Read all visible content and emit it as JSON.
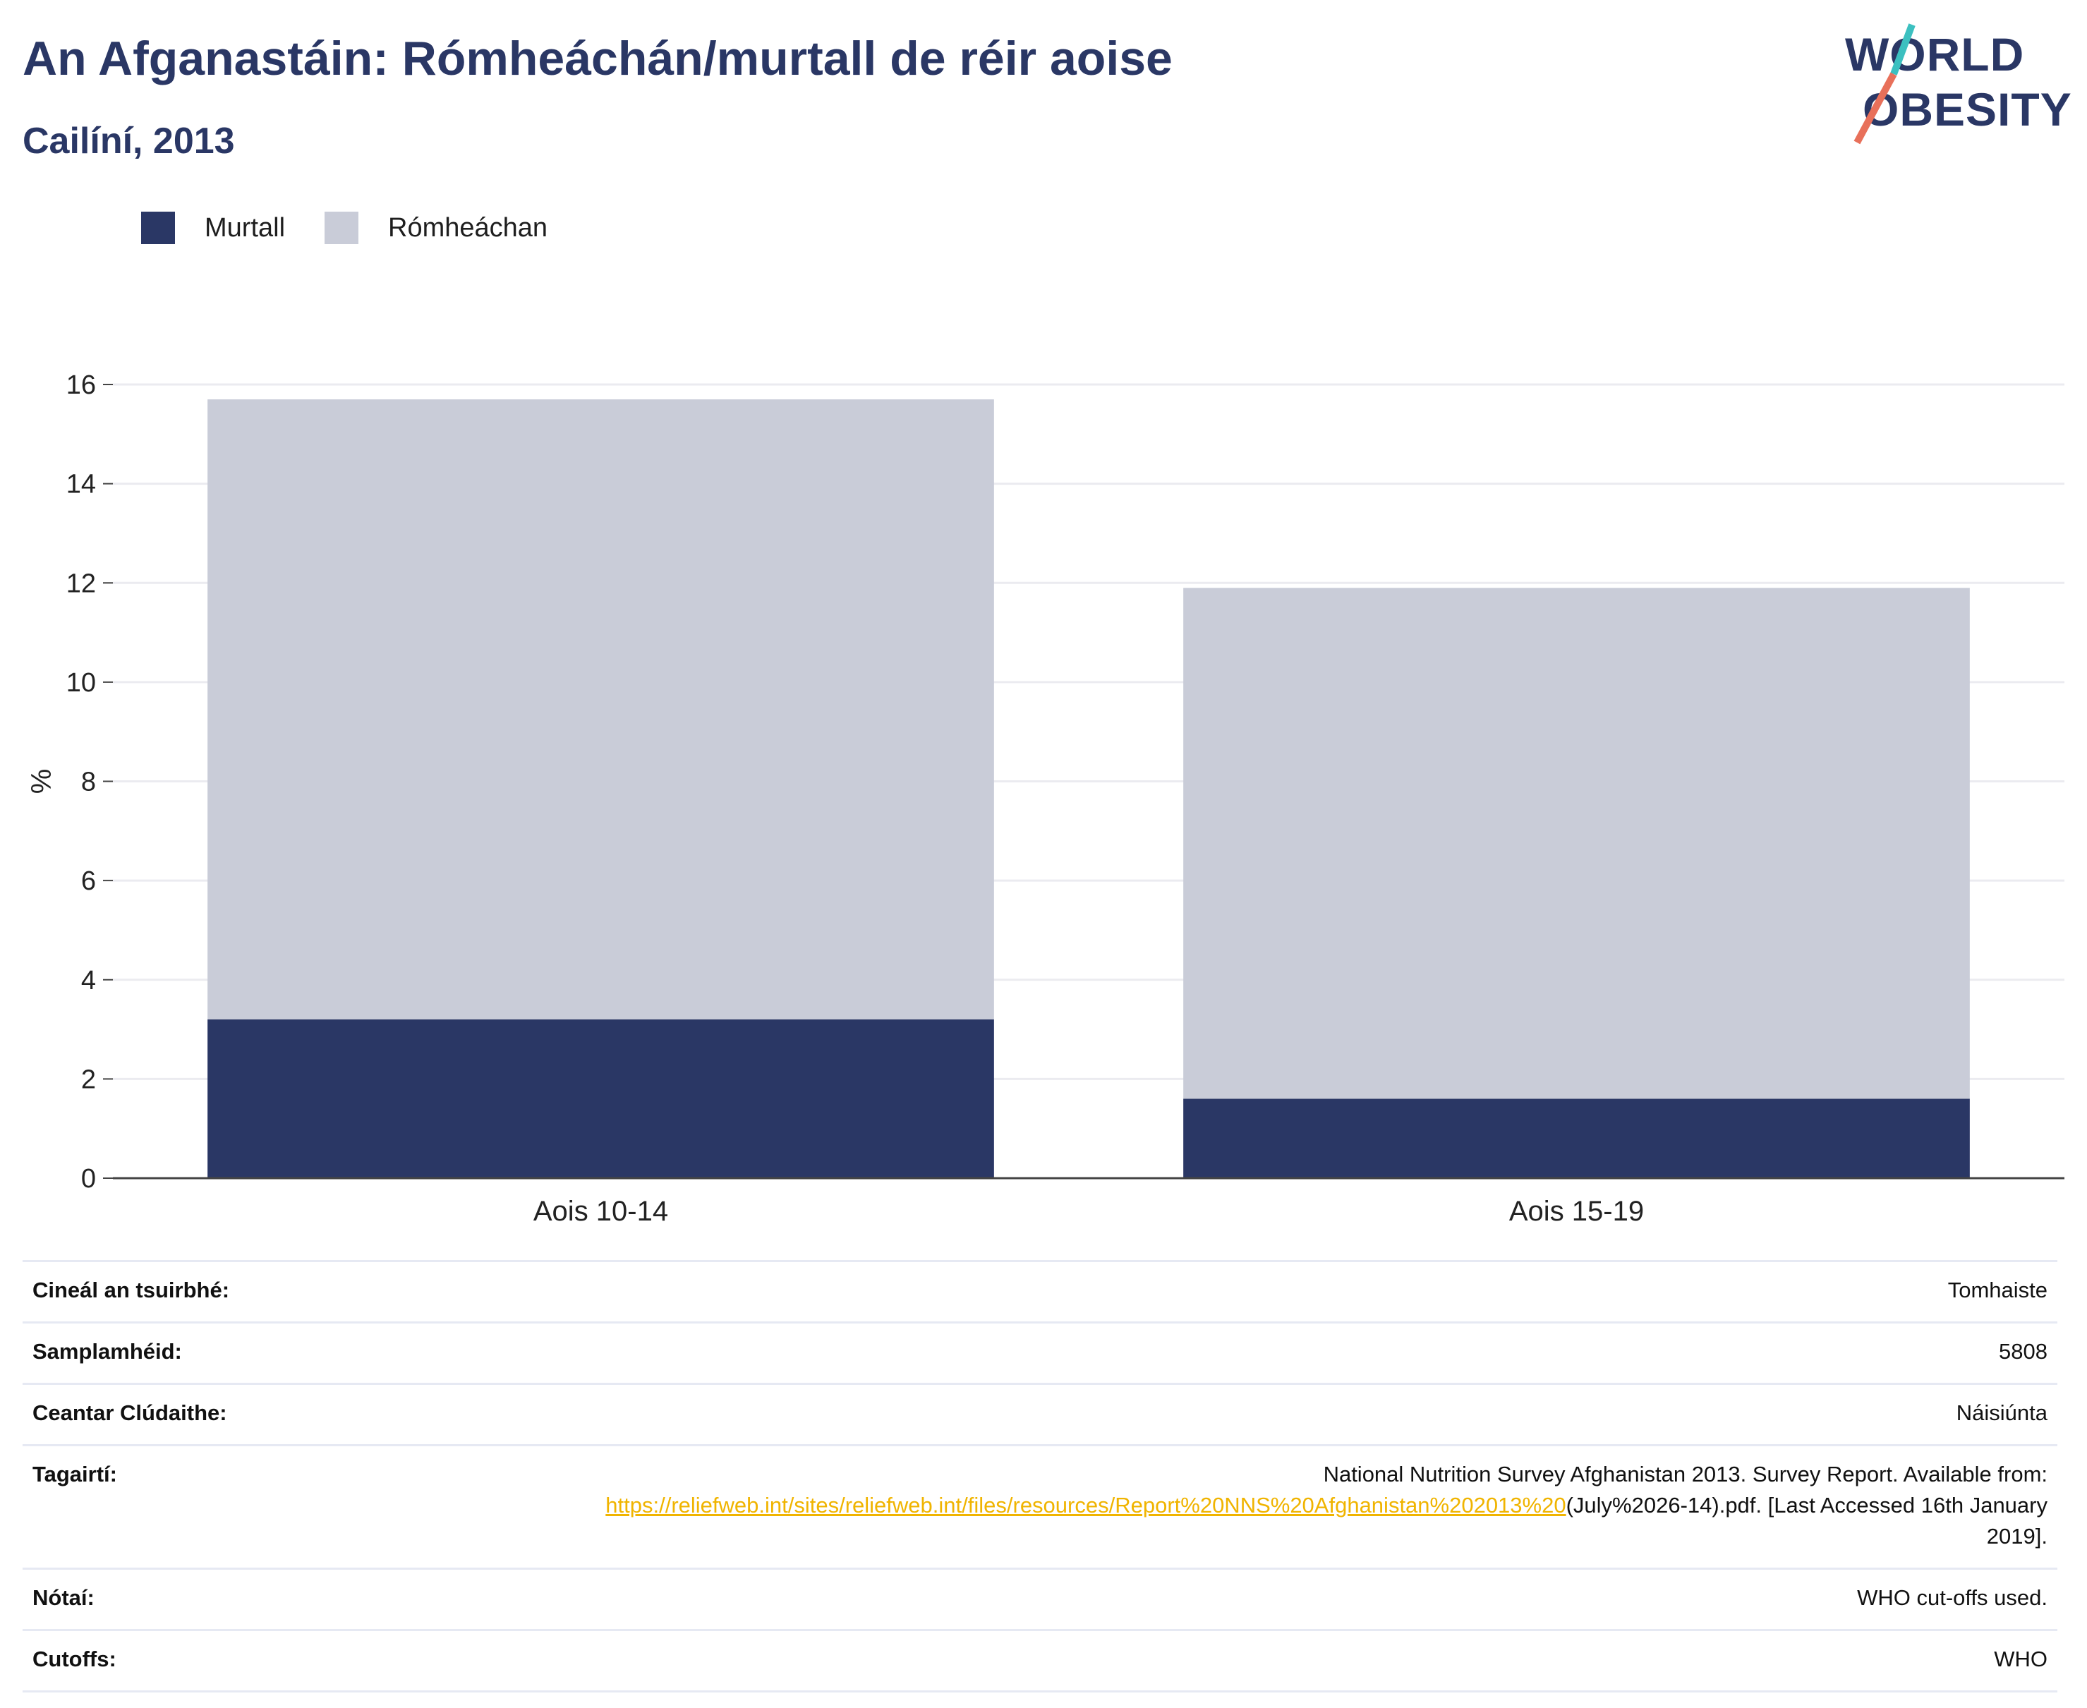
{
  "header": {
    "title": "An Afganastáin: Rómheáchán/murtall de réir aoise",
    "subtitle": "Cailíní, 2013"
  },
  "logo": {
    "line1": "WORLD",
    "line2": "OBESITY",
    "colors": {
      "text": "#2a3765",
      "slash_top": "#3cc0c0",
      "slash_bottom": "#e8705a"
    }
  },
  "legend": [
    {
      "label": "Murtall",
      "color": "#2a3765"
    },
    {
      "label": "Rómheáchan",
      "color": "#c9ccd8"
    }
  ],
  "chart_data": {
    "type": "bar",
    "stacked": true,
    "categories": [
      "Aois 10-14",
      "Aois 15-19"
    ],
    "series": [
      {
        "name": "Murtall",
        "values": [
          3.2,
          1.6
        ],
        "color": "#2a3765"
      },
      {
        "name": "Rómheáchan",
        "values": [
          12.5,
          10.3
        ],
        "color": "#c9ccd8"
      }
    ],
    "ylabel": "%",
    "ylim": [
      0,
      16
    ],
    "yticks": [
      0,
      2,
      4,
      6,
      8,
      10,
      12,
      14,
      16
    ],
    "grid": true,
    "legend_position": "top-left"
  },
  "info": {
    "survey_type": {
      "label": "Cineál an tsuirbhé:",
      "value": "Tomhaiste"
    },
    "sample_size": {
      "label": "Samplamhéid:",
      "value": "5808"
    },
    "area": {
      "label": "Ceantar Clúdaithe:",
      "value": "Náisiúnta"
    },
    "references": {
      "label": "Tagairtí:",
      "text_before": "National Nutrition Survey Afghanistan 2013. Survey Report. Available from:",
      "link": "https://reliefweb.int/sites/reliefweb.int/files/resources/Report%20NNS%20Afghanistan%202013%20",
      "text_after": "(July%2026-14).pdf. [Last Accessed 16th January 2019]."
    },
    "notes": {
      "label": "Nótaí:",
      "value": "WHO cut-offs used."
    },
    "cutoffs": {
      "label": "Cutoffs:",
      "value": "WHO"
    }
  }
}
